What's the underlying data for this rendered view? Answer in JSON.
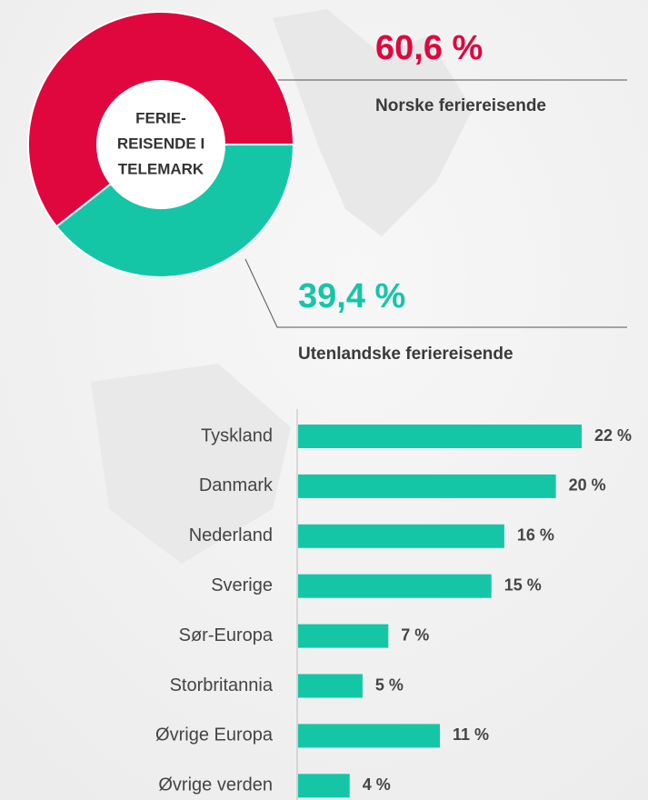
{
  "chart_data": [
    {
      "type": "donut",
      "title": [
        "FERIE-",
        "REISENDE I",
        "TELEMARK"
      ],
      "categories": [
        "Norske feriereisende",
        "Utenlandske feriereisende"
      ],
      "values": [
        60.6,
        39.4
      ],
      "value_labels": [
        "60,6 %",
        "39,4 %"
      ],
      "colors": [
        "#e0063e",
        "#15c6a6"
      ]
    },
    {
      "type": "hbar",
      "categories": [
        "Tyskland",
        "Danmark",
        "Nederland",
        "Sverige",
        "Sør-Europa",
        "Storbritannia",
        "Øvrige Europa",
        "Øvrige verden"
      ],
      "values": [
        22,
        20,
        16,
        15,
        7,
        5,
        11,
        4
      ],
      "value_labels": [
        "22 %",
        "20 %",
        "16 %",
        "15 %",
        "7 %",
        "5 %",
        "11 %",
        "4 %"
      ],
      "color": "#15c6a6"
    }
  ]
}
